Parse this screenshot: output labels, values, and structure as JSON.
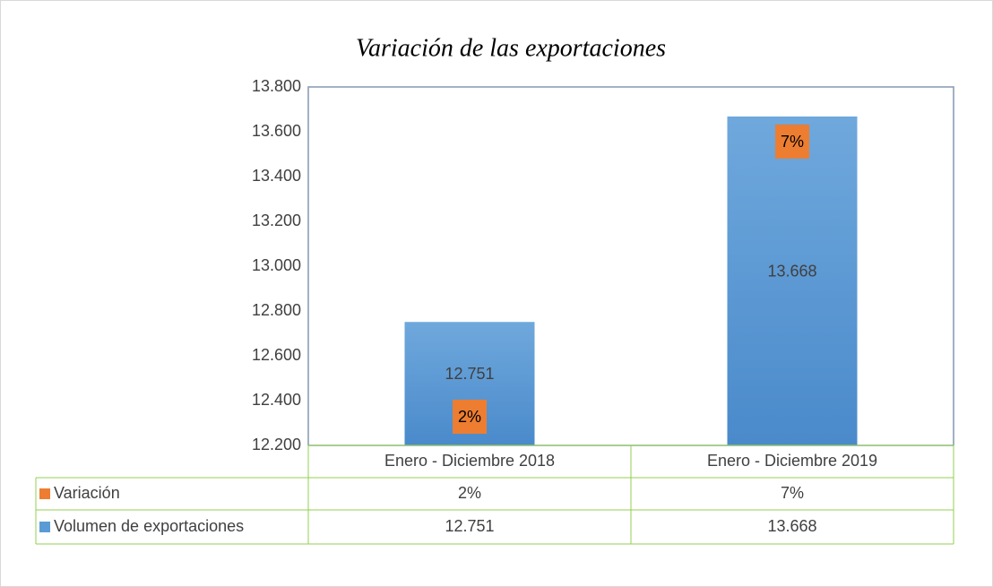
{
  "chart_data": {
    "type": "bar",
    "title": "Variación de las exportaciones",
    "categories": [
      "Enero - Diciembre 2018",
      "Enero - Diciembre 2019"
    ],
    "series": [
      {
        "name": "Variación",
        "color": "#ed7d31",
        "values": [
          2,
          7
        ],
        "value_labels": [
          "2%",
          "7%"
        ]
      },
      {
        "name": "Volumen de exportaciones",
        "color": "#5b9bd5",
        "values": [
          12751,
          13668
        ],
        "value_labels": [
          "12.751",
          "13.668"
        ]
      }
    ],
    "ylim": [
      12200,
      13800
    ],
    "yticks": [
      {
        "value": 12200,
        "label": "12.200"
      },
      {
        "value": 12400,
        "label": "12.400"
      },
      {
        "value": 12600,
        "label": "12.600"
      },
      {
        "value": 12800,
        "label": "12.800"
      },
      {
        "value": 13000,
        "label": "13.000"
      },
      {
        "value": 13200,
        "label": "13.200"
      },
      {
        "value": 13400,
        "label": "13.400"
      },
      {
        "value": 13600,
        "label": "13.600"
      },
      {
        "value": 13800,
        "label": "13.800"
      }
    ],
    "grid": false,
    "data_table": true
  }
}
